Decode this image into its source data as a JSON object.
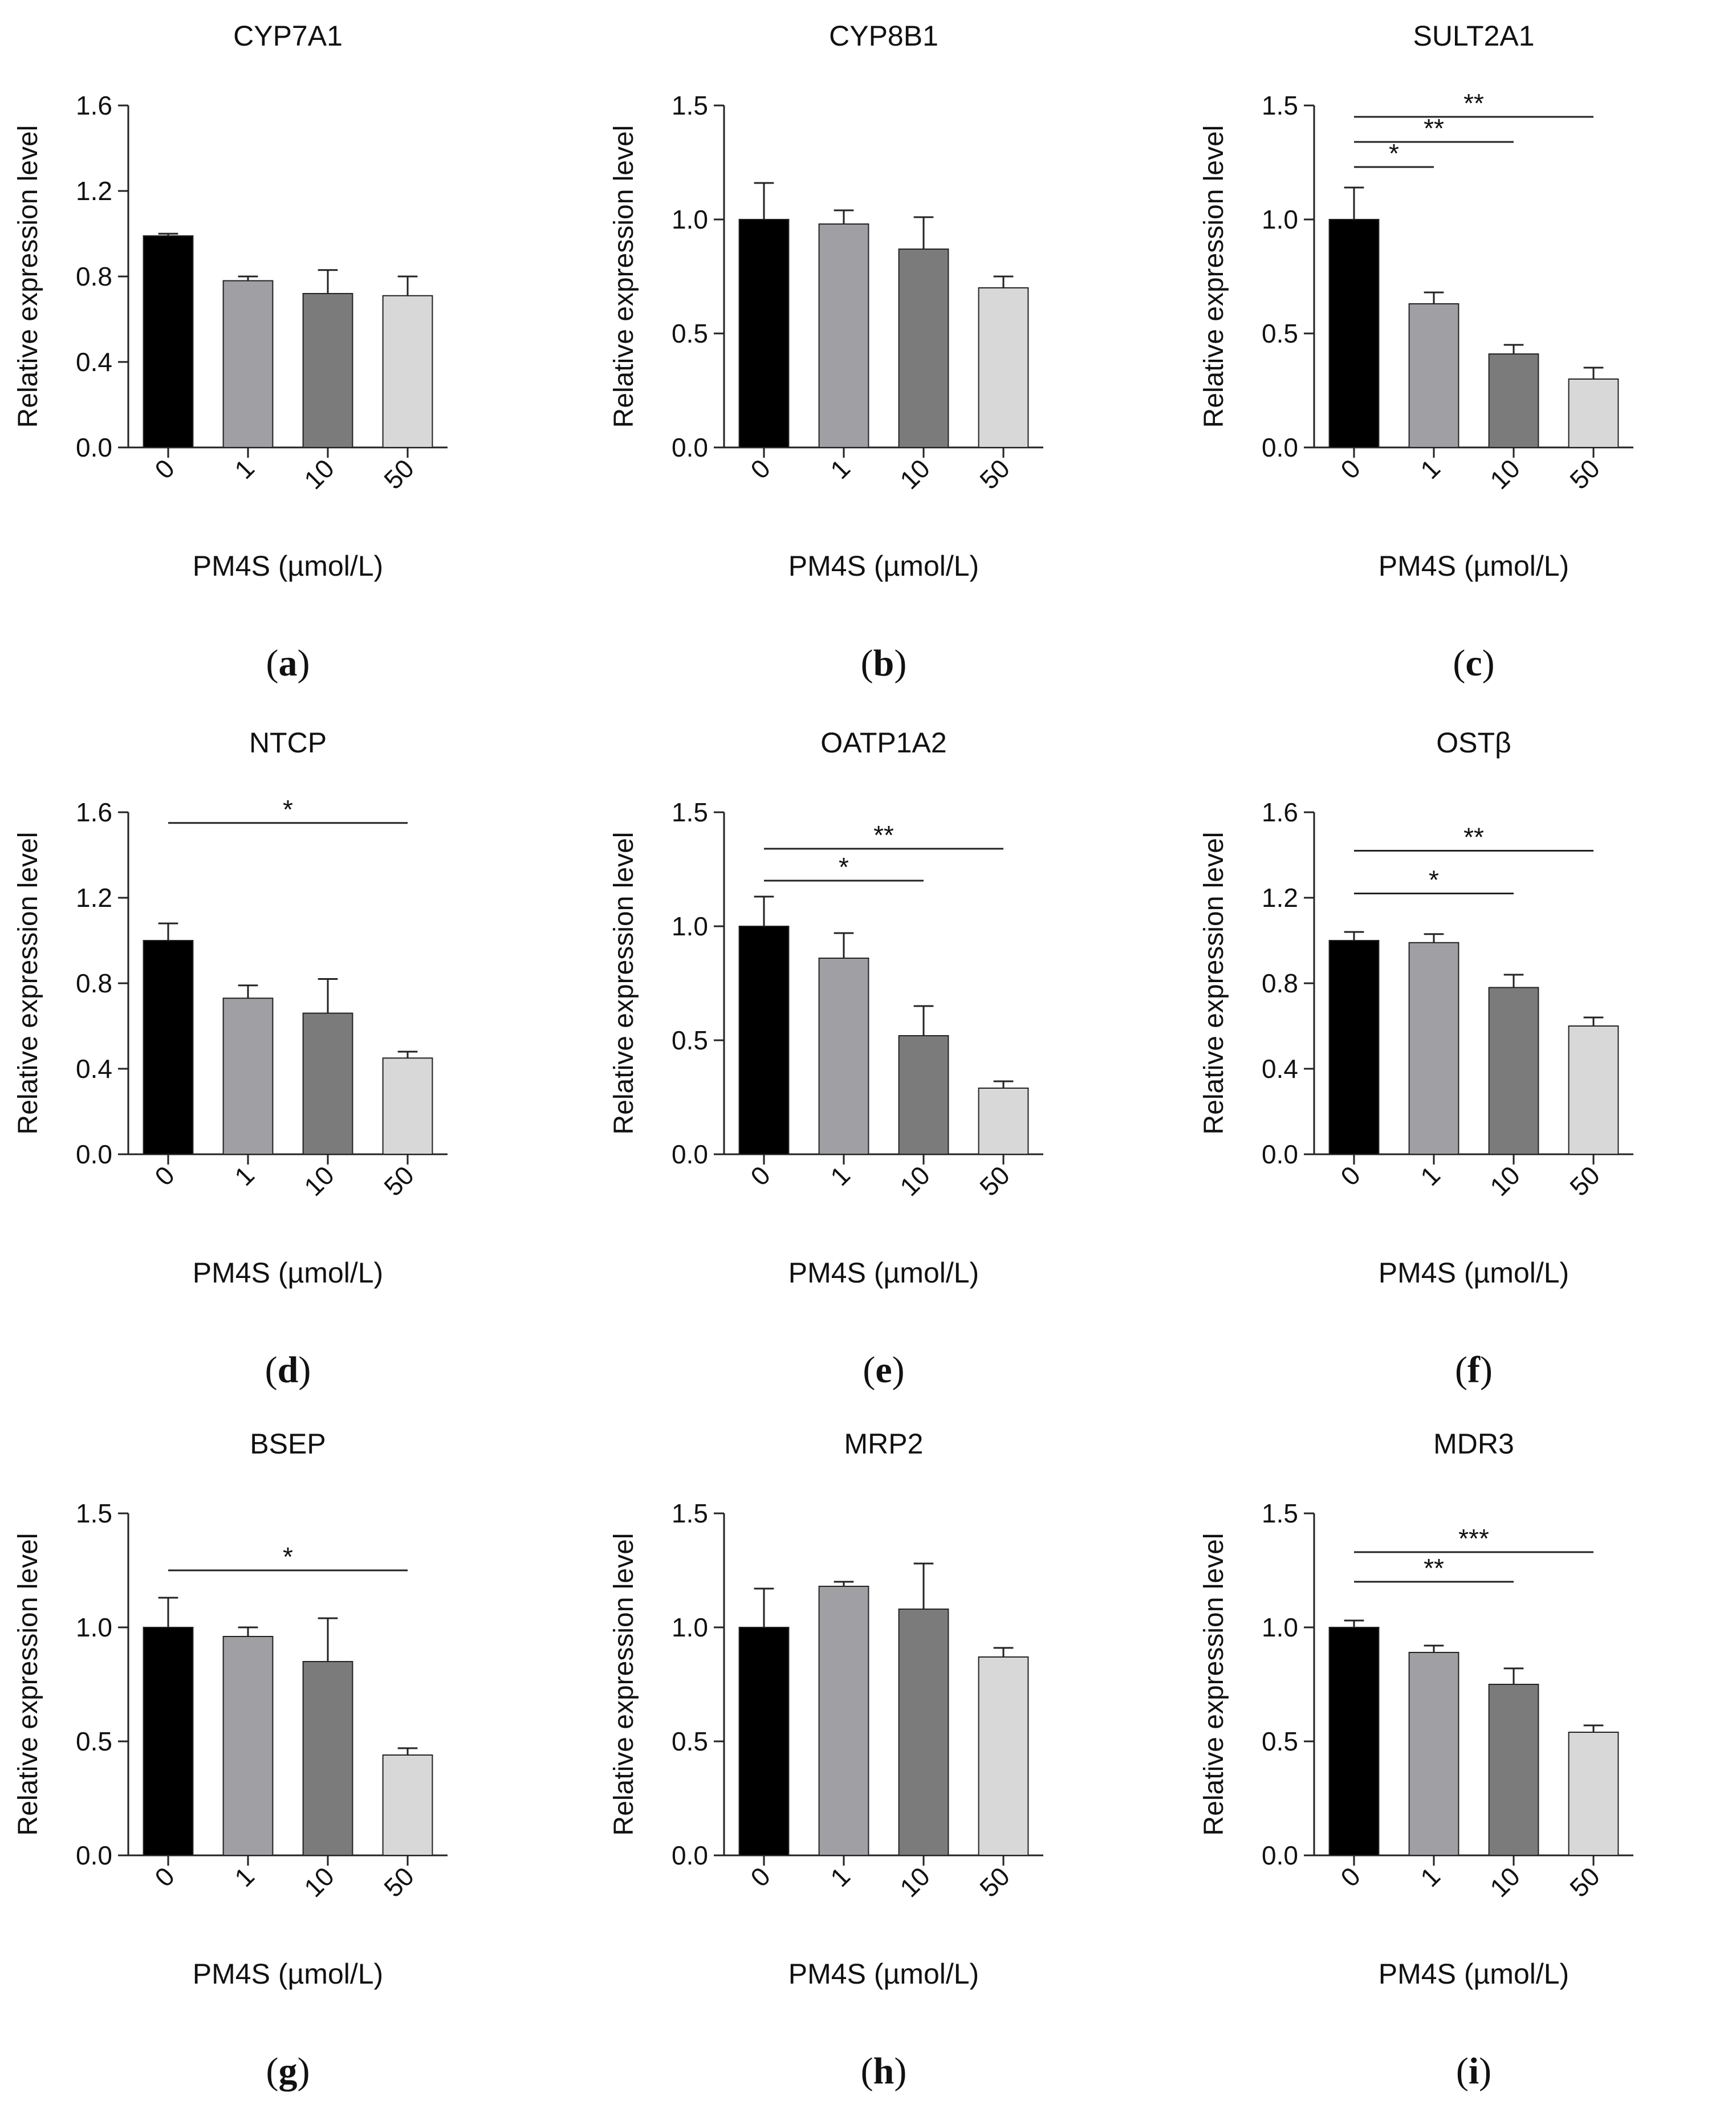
{
  "colors": {
    "bar_fills": [
      "#000000",
      "#a0a0a4",
      "#7b7b7b",
      "#d8d8d8"
    ],
    "stroke": "#222222",
    "background": "#ffffff"
  },
  "chart_data": [
    {
      "panel": "a",
      "type": "bar",
      "title": "CYP7A1",
      "xlabel": "PM4S (µmol/L)",
      "ylabel": "Relative expression level",
      "categories": [
        "0",
        "1",
        "10",
        "50"
      ],
      "values": [
        0.99,
        0.78,
        0.72,
        0.71
      ],
      "errors": [
        0.01,
        0.02,
        0.11,
        0.09
      ],
      "ylim": [
        0,
        1.6
      ],
      "yticks": [
        "0.0",
        "0.4",
        "0.8",
        "1.2",
        "1.6"
      ],
      "significance": [],
      "caption": "a"
    },
    {
      "panel": "b",
      "type": "bar",
      "title": "CYP8B1",
      "xlabel": "PM4S (µmol/L)",
      "ylabel": "Relative expression level",
      "categories": [
        "0",
        "1",
        "10",
        "50"
      ],
      "values": [
        1.0,
        0.98,
        0.87,
        0.7
      ],
      "errors": [
        0.16,
        0.06,
        0.14,
        0.05
      ],
      "ylim": [
        0,
        1.5
      ],
      "yticks": [
        "0.0",
        "0.5",
        "1.0",
        "1.5"
      ],
      "significance": [],
      "caption": "b"
    },
    {
      "panel": "c",
      "type": "bar",
      "title": "SULT2A1",
      "xlabel": "PM4S (µmol/L)",
      "ylabel": "Relative expression level",
      "categories": [
        "0",
        "1",
        "10",
        "50"
      ],
      "values": [
        1.0,
        0.63,
        0.41,
        0.3
      ],
      "errors": [
        0.14,
        0.05,
        0.04,
        0.05
      ],
      "ylim": [
        0,
        1.5
      ],
      "yticks": [
        "0.0",
        "0.5",
        "1.0",
        "1.5"
      ],
      "significance": [
        {
          "from": 0,
          "to": 1,
          "level": 1.23,
          "label": "*"
        },
        {
          "from": 0,
          "to": 2,
          "level": 1.34,
          "label": "**"
        },
        {
          "from": 0,
          "to": 3,
          "level": 1.45,
          "label": "**"
        }
      ],
      "caption": "c"
    },
    {
      "panel": "d",
      "type": "bar",
      "title": "NTCP",
      "xlabel": "PM4S (µmol/L)",
      "ylabel": "Relative expression level",
      "categories": [
        "0",
        "1",
        "10",
        "50"
      ],
      "values": [
        1.0,
        0.73,
        0.66,
        0.45
      ],
      "errors": [
        0.08,
        0.06,
        0.16,
        0.03
      ],
      "ylim": [
        0,
        1.6
      ],
      "yticks": [
        "0.0",
        "0.4",
        "0.8",
        "1.2",
        "1.6"
      ],
      "significance": [
        {
          "from": 0,
          "to": 3,
          "level": 1.55,
          "label": "*"
        }
      ],
      "caption": "d"
    },
    {
      "panel": "e",
      "type": "bar",
      "title": "OATP1A2",
      "xlabel": "PM4S (µmol/L)",
      "ylabel": "Relative expression level",
      "categories": [
        "0",
        "1",
        "10",
        "50"
      ],
      "values": [
        1.0,
        0.86,
        0.52,
        0.29
      ],
      "errors": [
        0.13,
        0.11,
        0.13,
        0.03
      ],
      "ylim": [
        0,
        1.5
      ],
      "yticks": [
        "0.0",
        "0.5",
        "1.0",
        "1.5"
      ],
      "significance": [
        {
          "from": 0,
          "to": 2,
          "level": 1.2,
          "label": "*"
        },
        {
          "from": 0,
          "to": 3,
          "level": 1.34,
          "label": "**"
        }
      ],
      "caption": "e"
    },
    {
      "panel": "f",
      "type": "bar",
      "title": "OSTβ",
      "xlabel": "PM4S (µmol/L)",
      "ylabel": "Relative expression level",
      "categories": [
        "0",
        "1",
        "10",
        "50"
      ],
      "values": [
        1.0,
        0.99,
        0.78,
        0.6
      ],
      "errors": [
        0.04,
        0.04,
        0.06,
        0.04
      ],
      "ylim": [
        0,
        1.6
      ],
      "yticks": [
        "0.0",
        "0.4",
        "0.8",
        "1.2",
        "1.6"
      ],
      "significance": [
        {
          "from": 0,
          "to": 2,
          "level": 1.22,
          "label": "*"
        },
        {
          "from": 0,
          "to": 3,
          "level": 1.42,
          "label": "**"
        }
      ],
      "caption": "f"
    },
    {
      "panel": "g",
      "type": "bar",
      "title": "BSEP",
      "xlabel": "PM4S (µmol/L)",
      "ylabel": "Relative expression level",
      "categories": [
        "0",
        "1",
        "10",
        "50"
      ],
      "values": [
        1.0,
        0.96,
        0.85,
        0.44
      ],
      "errors": [
        0.13,
        0.04,
        0.19,
        0.03
      ],
      "ylim": [
        0,
        1.5
      ],
      "yticks": [
        "0.0",
        "0.5",
        "1.0",
        "1.5"
      ],
      "significance": [
        {
          "from": 0,
          "to": 3,
          "level": 1.25,
          "label": "*"
        }
      ],
      "caption": "g"
    },
    {
      "panel": "h",
      "type": "bar",
      "title": "MRP2",
      "xlabel": "PM4S (µmol/L)",
      "ylabel": "Relative expression level",
      "categories": [
        "0",
        "1",
        "10",
        "50"
      ],
      "values": [
        1.0,
        1.18,
        1.08,
        0.87
      ],
      "errors": [
        0.17,
        0.02,
        0.2,
        0.04
      ],
      "ylim": [
        0,
        1.5
      ],
      "yticks": [
        "0.0",
        "0.5",
        "1.0",
        "1.5"
      ],
      "significance": [],
      "caption": "h"
    },
    {
      "panel": "i",
      "type": "bar",
      "title": "MDR3",
      "xlabel": "PM4S (µmol/L)",
      "ylabel": "Relative expression level",
      "categories": [
        "0",
        "1",
        "10",
        "50"
      ],
      "values": [
        1.0,
        0.89,
        0.75,
        0.54
      ],
      "errors": [
        0.03,
        0.03,
        0.07,
        0.03
      ],
      "ylim": [
        0,
        1.5
      ],
      "yticks": [
        "0.0",
        "0.5",
        "1.0",
        "1.5"
      ],
      "significance": [
        {
          "from": 0,
          "to": 2,
          "level": 1.2,
          "label": "**"
        },
        {
          "from": 0,
          "to": 3,
          "level": 1.33,
          "label": "***"
        }
      ],
      "caption": "i"
    }
  ]
}
